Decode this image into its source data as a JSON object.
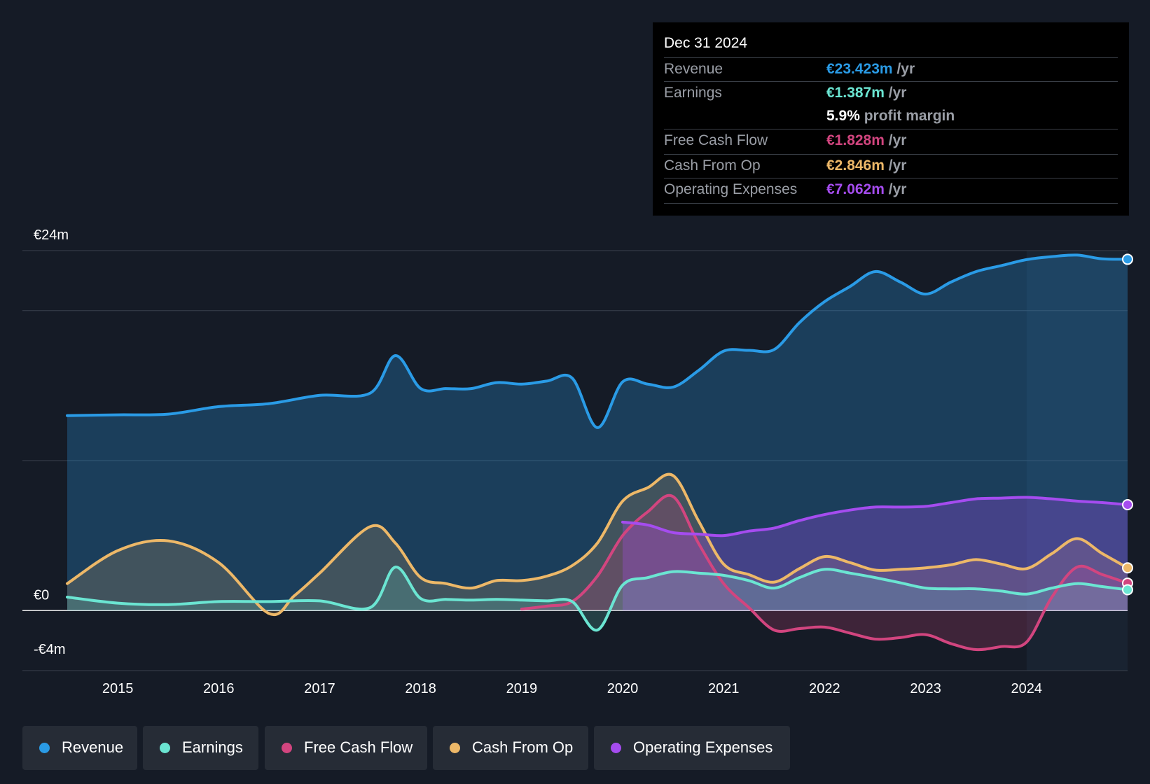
{
  "colors": {
    "revenue": "#2a9be6",
    "earnings": "#6be5d2",
    "free_cash_flow": "#d2457f",
    "cash_from_op": "#edb868",
    "operating_expenses": "#a54cef",
    "background": "#151b26"
  },
  "tooltip": {
    "date": "Dec 31 2024",
    "rows": [
      {
        "label": "Revenue",
        "value": "€23.423m",
        "unit": "/yr"
      },
      {
        "label": "Earnings",
        "value": "€1.387m",
        "unit": "/yr"
      },
      {
        "margin_value": "5.9%",
        "margin_label": "profit margin"
      },
      {
        "label": "Free Cash Flow",
        "value": "€1.828m",
        "unit": "/yr"
      },
      {
        "label": "Cash From Op",
        "value": "€2.846m",
        "unit": "/yr"
      },
      {
        "label": "Operating Expenses",
        "value": "€7.062m",
        "unit": "/yr"
      }
    ]
  },
  "legend": [
    {
      "name": "revenue",
      "label": "Revenue"
    },
    {
      "name": "earnings",
      "label": "Earnings"
    },
    {
      "name": "free-cash-flow",
      "label": "Free Cash Flow"
    },
    {
      "name": "cash-from-op",
      "label": "Cash From Op"
    },
    {
      "name": "operating-expenses",
      "label": "Operating Expenses"
    }
  ],
  "chart_data": {
    "type": "area",
    "title": "",
    "xlabel": "",
    "ylabel": "",
    "x_range": [
      2014.5,
      2025.0
    ],
    "ylim": [
      -4,
      24
    ],
    "y_tick_labels": [
      {
        "value": 24,
        "label": "€24m"
      },
      {
        "value": 0,
        "label": "€0"
      },
      {
        "value": -4,
        "label": "-€4m"
      }
    ],
    "gridlines": [
      24,
      20,
      10,
      0,
      -4
    ],
    "x_ticks": [
      2015,
      2016,
      2017,
      2018,
      2019,
      2020,
      2021,
      2022,
      2023,
      2024
    ],
    "x_tick_labels": [
      "2015",
      "2016",
      "2017",
      "2018",
      "2019",
      "2020",
      "2021",
      "2022",
      "2023",
      "2024"
    ],
    "highlight_from": 2024.0,
    "series": [
      {
        "name": "Revenue",
        "key": "revenue",
        "points": [
          [
            2014.5,
            13.0
          ],
          [
            2015.0,
            13.05
          ],
          [
            2015.5,
            13.1
          ],
          [
            2016.0,
            13.6
          ],
          [
            2016.5,
            13.8
          ],
          [
            2017.0,
            14.35
          ],
          [
            2017.5,
            14.5
          ],
          [
            2017.75,
            17.0
          ],
          [
            2018.0,
            14.8
          ],
          [
            2018.25,
            14.8
          ],
          [
            2018.5,
            14.8
          ],
          [
            2018.75,
            15.2
          ],
          [
            2019.0,
            15.1
          ],
          [
            2019.25,
            15.3
          ],
          [
            2019.5,
            15.5
          ],
          [
            2019.75,
            12.2
          ],
          [
            2020.0,
            15.25
          ],
          [
            2020.25,
            15.1
          ],
          [
            2020.5,
            14.9
          ],
          [
            2020.75,
            16.0
          ],
          [
            2021.0,
            17.3
          ],
          [
            2021.25,
            17.35
          ],
          [
            2021.5,
            17.4
          ],
          [
            2021.75,
            19.2
          ],
          [
            2022.0,
            20.6
          ],
          [
            2022.25,
            21.6
          ],
          [
            2022.5,
            22.6
          ],
          [
            2022.75,
            21.9
          ],
          [
            2023.0,
            21.1
          ],
          [
            2023.25,
            21.9
          ],
          [
            2023.5,
            22.6
          ],
          [
            2023.75,
            23.0
          ],
          [
            2024.0,
            23.4
          ],
          [
            2024.25,
            23.6
          ],
          [
            2024.5,
            23.7
          ],
          [
            2024.75,
            23.45
          ],
          [
            2025.0,
            23.42
          ]
        ]
      },
      {
        "name": "Earnings",
        "key": "earnings",
        "points": [
          [
            2014.5,
            0.9
          ],
          [
            2015.0,
            0.5
          ],
          [
            2015.5,
            0.4
          ],
          [
            2016.0,
            0.6
          ],
          [
            2016.5,
            0.6
          ],
          [
            2017.0,
            0.65
          ],
          [
            2017.5,
            0.2
          ],
          [
            2017.75,
            2.9
          ],
          [
            2018.0,
            0.8
          ],
          [
            2018.25,
            0.75
          ],
          [
            2018.5,
            0.7
          ],
          [
            2018.75,
            0.75
          ],
          [
            2019.0,
            0.7
          ],
          [
            2019.25,
            0.65
          ],
          [
            2019.5,
            0.6
          ],
          [
            2019.75,
            -1.3
          ],
          [
            2020.0,
            1.7
          ],
          [
            2020.25,
            2.2
          ],
          [
            2020.5,
            2.6
          ],
          [
            2020.75,
            2.5
          ],
          [
            2021.0,
            2.35
          ],
          [
            2021.25,
            2.0
          ],
          [
            2021.5,
            1.5
          ],
          [
            2021.75,
            2.2
          ],
          [
            2022.0,
            2.75
          ],
          [
            2022.25,
            2.5
          ],
          [
            2022.5,
            2.2
          ],
          [
            2022.75,
            1.85
          ],
          [
            2023.0,
            1.5
          ],
          [
            2023.25,
            1.45
          ],
          [
            2023.5,
            1.45
          ],
          [
            2023.75,
            1.3
          ],
          [
            2024.0,
            1.1
          ],
          [
            2024.25,
            1.5
          ],
          [
            2024.5,
            1.8
          ],
          [
            2024.75,
            1.6
          ],
          [
            2025.0,
            1.39
          ]
        ]
      },
      {
        "name": "Free Cash Flow",
        "key": "free_cash_flow",
        "points": [
          [
            2019.0,
            0.1
          ],
          [
            2019.25,
            0.3
          ],
          [
            2019.5,
            0.6
          ],
          [
            2019.75,
            2.3
          ],
          [
            2020.0,
            5.0
          ],
          [
            2020.25,
            6.6
          ],
          [
            2020.5,
            7.6
          ],
          [
            2020.75,
            4.5
          ],
          [
            2021.0,
            1.8
          ],
          [
            2021.25,
            0.2
          ],
          [
            2021.5,
            -1.3
          ],
          [
            2021.75,
            -1.2
          ],
          [
            2022.0,
            -1.1
          ],
          [
            2022.25,
            -1.5
          ],
          [
            2022.5,
            -1.9
          ],
          [
            2022.75,
            -1.8
          ],
          [
            2023.0,
            -1.6
          ],
          [
            2023.25,
            -2.2
          ],
          [
            2023.5,
            -2.6
          ],
          [
            2023.75,
            -2.4
          ],
          [
            2024.0,
            -2.1
          ],
          [
            2024.25,
            0.9
          ],
          [
            2024.5,
            2.9
          ],
          [
            2024.75,
            2.4
          ],
          [
            2025.0,
            1.83
          ]
        ]
      },
      {
        "name": "Cash From Op",
        "key": "cash_from_op",
        "points": [
          [
            2014.5,
            1.8
          ],
          [
            2015.0,
            4.0
          ],
          [
            2015.5,
            4.65
          ],
          [
            2016.0,
            3.2
          ],
          [
            2016.5,
            -0.2
          ],
          [
            2016.75,
            1.0
          ],
          [
            2017.0,
            2.5
          ],
          [
            2017.5,
            5.6
          ],
          [
            2017.75,
            4.5
          ],
          [
            2018.0,
            2.2
          ],
          [
            2018.25,
            1.8
          ],
          [
            2018.5,
            1.5
          ],
          [
            2018.75,
            2.0
          ],
          [
            2019.0,
            2.0
          ],
          [
            2019.25,
            2.3
          ],
          [
            2019.5,
            3.0
          ],
          [
            2019.75,
            4.5
          ],
          [
            2020.0,
            7.3
          ],
          [
            2020.25,
            8.2
          ],
          [
            2020.5,
            9.0
          ],
          [
            2020.75,
            6.0
          ],
          [
            2021.0,
            3.1
          ],
          [
            2021.25,
            2.4
          ],
          [
            2021.5,
            1.9
          ],
          [
            2021.75,
            2.8
          ],
          [
            2022.0,
            3.6
          ],
          [
            2022.25,
            3.2
          ],
          [
            2022.5,
            2.7
          ],
          [
            2022.75,
            2.75
          ],
          [
            2023.0,
            2.85
          ],
          [
            2023.25,
            3.05
          ],
          [
            2023.5,
            3.4
          ],
          [
            2023.75,
            3.1
          ],
          [
            2024.0,
            2.8
          ],
          [
            2024.25,
            3.8
          ],
          [
            2024.5,
            4.8
          ],
          [
            2024.75,
            3.8
          ],
          [
            2025.0,
            2.85
          ]
        ]
      },
      {
        "name": "Operating Expenses",
        "key": "operating_expenses",
        "points": [
          [
            2020.0,
            5.9
          ],
          [
            2020.25,
            5.7
          ],
          [
            2020.5,
            5.2
          ],
          [
            2020.75,
            5.1
          ],
          [
            2021.0,
            5.0
          ],
          [
            2021.25,
            5.3
          ],
          [
            2021.5,
            5.5
          ],
          [
            2021.75,
            6.0
          ],
          [
            2022.0,
            6.4
          ],
          [
            2022.25,
            6.7
          ],
          [
            2022.5,
            6.9
          ],
          [
            2022.75,
            6.9
          ],
          [
            2023.0,
            6.95
          ],
          [
            2023.25,
            7.2
          ],
          [
            2023.5,
            7.45
          ],
          [
            2023.75,
            7.5
          ],
          [
            2024.0,
            7.55
          ],
          [
            2024.25,
            7.45
          ],
          [
            2024.5,
            7.3
          ],
          [
            2024.75,
            7.2
          ],
          [
            2025.0,
            7.06
          ]
        ]
      }
    ]
  }
}
